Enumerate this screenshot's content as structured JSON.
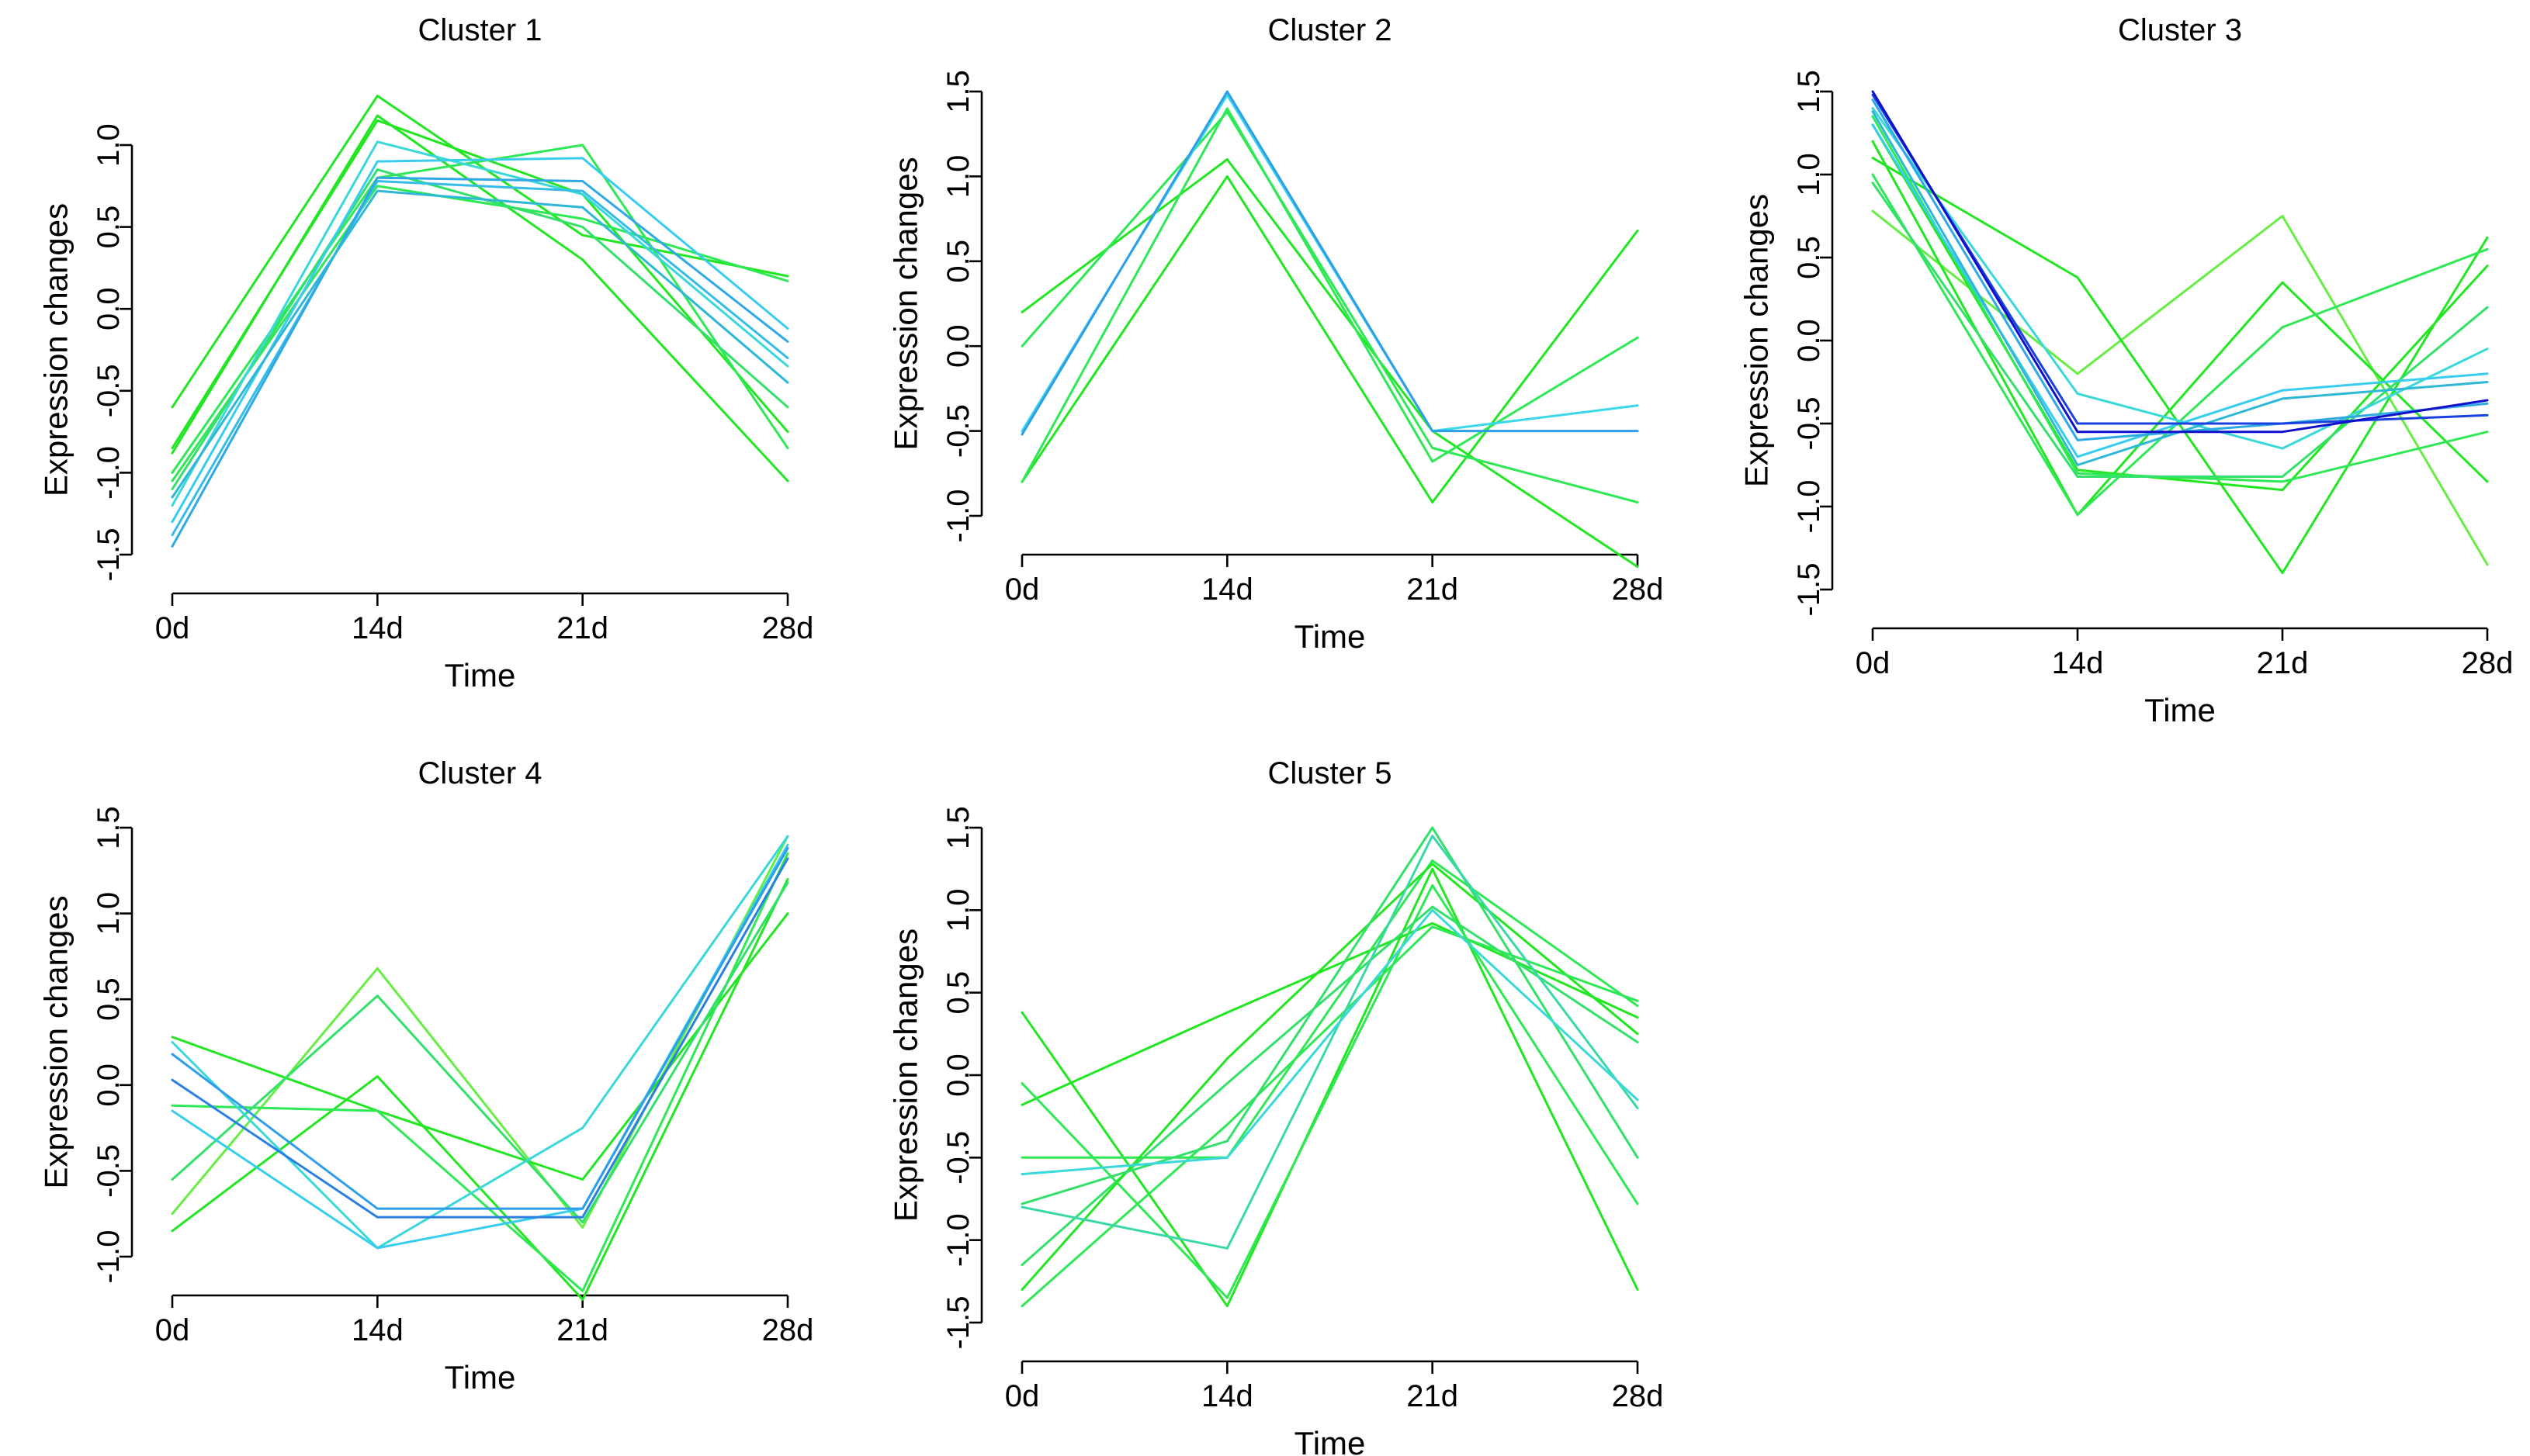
{
  "figure": {},
  "chart_data": [
    {
      "type": "line",
      "title": "Cluster 1",
      "xlabel": "Time",
      "ylabel": "Expression changes",
      "x": [
        "0d",
        "14d",
        "21d",
        "28d"
      ],
      "ylim": [
        -1.5,
        1.0
      ],
      "yticks": [
        "-1.5",
        "-1.0",
        "-0.5",
        "0.0",
        "0.5",
        "1.0"
      ],
      "series": [
        {
          "color": "#22e622",
          "values": [
            -0.6,
            1.3,
            0.45,
            0.2
          ]
        },
        {
          "color": "#22e622",
          "values": [
            -0.85,
            1.15,
            0.7,
            -0.75
          ]
        },
        {
          "color": "#22e622",
          "values": [
            -0.88,
            1.18,
            0.3,
            -1.05
          ]
        },
        {
          "color": "#2ee855",
          "values": [
            -1.0,
            0.8,
            1.0,
            -0.85
          ]
        },
        {
          "color": "#2ee855",
          "values": [
            -1.05,
            0.75,
            0.55,
            0.17
          ]
        },
        {
          "color": "#33e06a",
          "values": [
            -1.1,
            0.85,
            0.5,
            -0.6
          ]
        },
        {
          "color": "#3ad8d8",
          "values": [
            -1.2,
            1.02,
            0.7,
            -0.35
          ]
        },
        {
          "color": "#38ccee",
          "values": [
            -1.3,
            0.9,
            0.92,
            -0.12
          ]
        },
        {
          "color": "#35bde8",
          "values": [
            -1.38,
            0.78,
            0.72,
            -0.3
          ]
        },
        {
          "color": "#2fa8e6",
          "values": [
            -1.45,
            0.8,
            0.78,
            -0.2
          ]
        },
        {
          "color": "#2eb8d6",
          "values": [
            -1.15,
            0.72,
            0.62,
            -0.45
          ]
        }
      ]
    },
    {
      "type": "line",
      "title": "Cluster 2",
      "xlabel": "Time",
      "ylabel": "Expression changes",
      "x": [
        "0d",
        "14d",
        "21d",
        "28d"
      ],
      "ylim": [
        -1.0,
        1.5
      ],
      "yticks": [
        "-1.0",
        "-0.5",
        "0.0",
        "0.5",
        "1.0",
        "1.5"
      ],
      "series": [
        {
          "color": "#22e622",
          "values": [
            0.2,
            1.1,
            -0.5,
            -1.3
          ]
        },
        {
          "color": "#22e622",
          "values": [
            -0.8,
            1.0,
            -0.92,
            0.68
          ]
        },
        {
          "color": "#2ee855",
          "values": [
            0.0,
            1.38,
            -0.6,
            -0.92
          ]
        },
        {
          "color": "#2ee855",
          "values": [
            -0.8,
            1.4,
            -0.68,
            0.05
          ]
        },
        {
          "color": "#3ad8e8",
          "values": [
            -0.5,
            1.48,
            -0.5,
            -0.35
          ]
        },
        {
          "color": "#2f9ee8",
          "values": [
            -0.52,
            1.5,
            -0.5,
            -0.5
          ]
        }
      ]
    },
    {
      "type": "line",
      "title": "Cluster 3",
      "xlabel": "Time",
      "ylabel": "Expression changes",
      "x": [
        "0d",
        "14d",
        "21d",
        "28d"
      ],
      "ylim": [
        -1.5,
        1.5
      ],
      "yticks": [
        "-1.5",
        "-1.0",
        "-0.5",
        "0.0",
        "0.5",
        "1.0",
        "1.5"
      ],
      "series": [
        {
          "color": "#66ee44",
          "values": [
            0.78,
            -0.2,
            0.75,
            -1.35
          ]
        },
        {
          "color": "#22e622",
          "values": [
            1.1,
            0.38,
            -1.4,
            0.62
          ]
        },
        {
          "color": "#22e622",
          "values": [
            1.2,
            -1.05,
            0.35,
            -0.85
          ]
        },
        {
          "color": "#2ee855",
          "values": [
            1.0,
            -1.05,
            0.08,
            0.55
          ]
        },
        {
          "color": "#22e622",
          "values": [
            1.3,
            -0.78,
            -0.9,
            0.45
          ]
        },
        {
          "color": "#2ee855",
          "values": [
            1.35,
            -0.8,
            -0.85,
            -0.55
          ]
        },
        {
          "color": "#33e06a",
          "values": [
            0.95,
            -0.82,
            -0.82,
            0.2
          ]
        },
        {
          "color": "#3ad8d8",
          "values": [
            1.4,
            -0.32,
            -0.65,
            -0.05
          ]
        },
        {
          "color": "#38ccee",
          "values": [
            1.3,
            -0.7,
            -0.3,
            -0.2
          ]
        },
        {
          "color": "#2fa8e6",
          "values": [
            1.45,
            -0.6,
            -0.5,
            -0.38
          ]
        },
        {
          "color": "#2eb8d6",
          "values": [
            1.38,
            -0.75,
            -0.35,
            -0.25
          ]
        },
        {
          "color": "#1a40e0",
          "values": [
            1.48,
            -0.5,
            -0.5,
            -0.45
          ]
        },
        {
          "color": "#1010cc",
          "values": [
            1.5,
            -0.55,
            -0.55,
            -0.36
          ]
        }
      ]
    },
    {
      "type": "line",
      "title": "Cluster 4",
      "xlabel": "Time",
      "ylabel": "Expression changes",
      "x": [
        "0d",
        "14d",
        "21d",
        "28d"
      ],
      "ylim": [
        -1.0,
        1.5
      ],
      "yticks": [
        "-1.0",
        "-0.5",
        "0.0",
        "0.5",
        "1.0",
        "1.5"
      ],
      "series": [
        {
          "color": "#66ee44",
          "values": [
            -0.75,
            0.68,
            -0.83,
            1.45
          ]
        },
        {
          "color": "#22e622",
          "values": [
            -0.85,
            0.05,
            -1.25,
            1.2
          ]
        },
        {
          "color": "#22e622",
          "values": [
            0.28,
            -0.15,
            -0.55,
            1.0
          ]
        },
        {
          "color": "#2ee855",
          "values": [
            -0.12,
            -0.15,
            -1.2,
            1.35
          ]
        },
        {
          "color": "#33e06a",
          "values": [
            -0.55,
            0.52,
            -0.8,
            1.18
          ]
        },
        {
          "color": "#3ad8d8",
          "values": [
            0.25,
            -0.95,
            -0.25,
            1.45
          ]
        },
        {
          "color": "#38ccee",
          "values": [
            -0.15,
            -0.95,
            -0.72,
            1.4
          ]
        },
        {
          "color": "#2f9ee8",
          "values": [
            0.18,
            -0.72,
            -0.72,
            1.38
          ]
        },
        {
          "color": "#2b7fe0",
          "values": [
            0.03,
            -0.77,
            -0.77,
            1.32
          ]
        }
      ]
    },
    {
      "type": "line",
      "title": "Cluster 5",
      "xlabel": "Time",
      "ylabel": "Expression changes",
      "x": [
        "0d",
        "14d",
        "21d",
        "28d"
      ],
      "ylim": [
        -1.5,
        1.5
      ],
      "yticks": [
        "-1.5",
        "-1.0",
        "-0.5",
        "0.0",
        "0.5",
        "1.0",
        "1.5"
      ],
      "series": [
        {
          "color": "#22e622",
          "values": [
            0.38,
            -1.4,
            1.25,
            -1.3
          ]
        },
        {
          "color": "#22e622",
          "values": [
            -0.18,
            0.38,
            0.92,
            0.35
          ]
        },
        {
          "color": "#2ee855",
          "values": [
            -0.5,
            -0.5,
            1.3,
            0.42
          ]
        },
        {
          "color": "#2ee855",
          "values": [
            -0.05,
            -1.35,
            1.15,
            -0.78
          ]
        },
        {
          "color": "#33e06a",
          "values": [
            -1.15,
            -0.05,
            1.02,
            0.2
          ]
        },
        {
          "color": "#22e622",
          "values": [
            -1.3,
            0.1,
            1.28,
            0.25
          ]
        },
        {
          "color": "#2ee855",
          "values": [
            -1.4,
            -0.3,
            0.9,
            0.45
          ]
        },
        {
          "color": "#33e06a",
          "values": [
            -0.78,
            -0.4,
            1.5,
            -0.5
          ]
        },
        {
          "color": "#3ad8a8",
          "values": [
            -0.8,
            -1.05,
            1.45,
            -0.2
          ]
        },
        {
          "color": "#3ad8d8",
          "values": [
            -0.6,
            -0.5,
            1.0,
            -0.15
          ]
        }
      ]
    }
  ]
}
